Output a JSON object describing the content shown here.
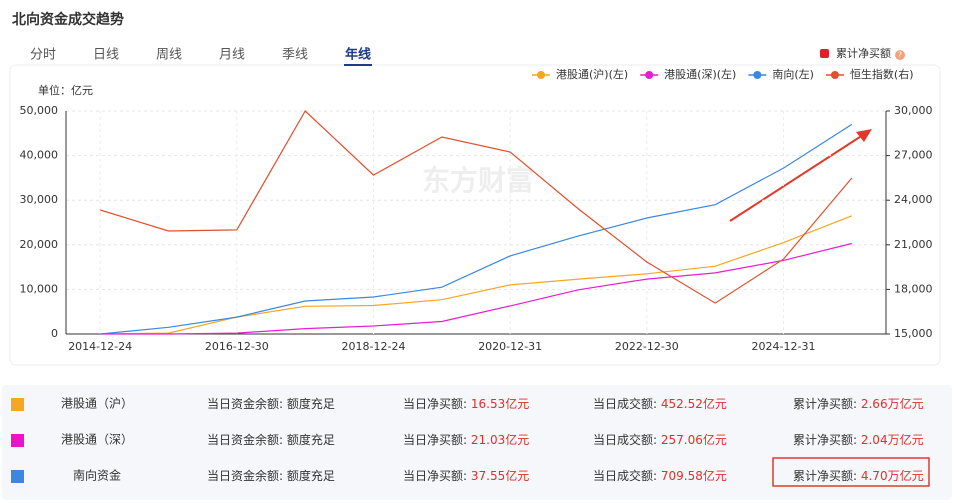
{
  "header": {
    "title": "北向资金成交趋势"
  },
  "tabs": [
    "分时",
    "日线",
    "周线",
    "月线",
    "季线",
    "年线"
  ],
  "active_tab": 5,
  "toggle": {
    "label": "累计净买额",
    "help": "?"
  },
  "chart_data": {
    "type": "line",
    "unit_label": "单位：亿元",
    "watermark": "东方财富",
    "categories": [
      "2014-12-24",
      null,
      "2016-12-30",
      null,
      "2018-12-24",
      null,
      "2020-12-31",
      null,
      "2022-12-30",
      null,
      "2024-12-31",
      null
    ],
    "series": [
      {
        "name": "港股通(沪)(左)",
        "color": "#f5a623",
        "axis": "y",
        "values": [
          0,
          200,
          3800,
          6200,
          6400,
          7700,
          11000,
          12300,
          13500,
          15200,
          20500,
          26500
        ]
      },
      {
        "name": "港股通(深)(左)",
        "color": "#e61ed2",
        "axis": "y",
        "values": [
          0,
          0,
          200,
          1200,
          1800,
          2800,
          6300,
          9900,
          12300,
          13700,
          16500,
          20300
        ]
      },
      {
        "name": "南向(左)",
        "color": "#3d87e0",
        "axis": "y",
        "values": [
          0,
          1500,
          3800,
          7400,
          8300,
          10500,
          17500,
          22000,
          26000,
          29000,
          37200,
          47000
        ]
      },
      {
        "name": "恒生指数(右)",
        "color": "#e0502e",
        "axis": "y2",
        "values": [
          23340,
          21930,
          22000,
          30000,
          25690,
          28250,
          27240,
          23410,
          19840,
          17080,
          20040,
          25490
        ]
      }
    ],
    "ylim": [
      0,
      50000
    ],
    "yticks": [
      0,
      {
        "value": 10000,
        "label": "10,000"
      },
      {
        "value": 20000,
        "label": "20,000"
      },
      {
        "value": 30000,
        "label": "30,000"
      },
      {
        "value": 40000,
        "label": "40,000"
      },
      {
        "value": 50000,
        "label": "50,000"
      }
    ],
    "y2lim": [
      15000,
      30000
    ],
    "y2ticks": [
      {
        "value": 15000,
        "label": "15,000"
      },
      {
        "value": 18000,
        "label": "18,000"
      },
      {
        "value": 21000,
        "label": "21,000"
      },
      {
        "value": 24000,
        "label": "24,000"
      },
      {
        "value": 27000,
        "label": "27,000"
      },
      {
        "value": 30000,
        "label": "30,000"
      }
    ],
    "grid": true,
    "legend": "top-right"
  },
  "table": {
    "rows": [
      {
        "name": "港股通（沪）",
        "color": "#f5a623",
        "cells": [
          {
            "label": "当日资金余额: ",
            "value": "额度充足"
          },
          {
            "label": "当日净买额: ",
            "value": "16.53亿元"
          },
          {
            "label": "当日成交额: ",
            "value": "452.52亿元"
          },
          {
            "label": "累计净买额: ",
            "value": "2.66万亿元"
          }
        ]
      },
      {
        "name": "港股通（深）",
        "color": "#ee11cc",
        "cells": [
          {
            "label": "当日资金余额: ",
            "value": "额度充足"
          },
          {
            "label": "当日净买额: ",
            "value": "21.03亿元"
          },
          {
            "label": "当日成交额: ",
            "value": "257.06亿元"
          },
          {
            "label": "累计净买额: ",
            "value": "2.04万亿元"
          }
        ]
      },
      {
        "name": "南向资金",
        "color": "#3d87e0",
        "cells": [
          {
            "label": "当日资金余额: ",
            "value": "额度充足"
          },
          {
            "label": "当日净买额: ",
            "value": "37.55亿元"
          },
          {
            "label": "当日成交额: ",
            "value": "709.58亿元"
          },
          {
            "label": "累计净买额: ",
            "value": "4.70万亿元"
          }
        ]
      }
    ]
  }
}
